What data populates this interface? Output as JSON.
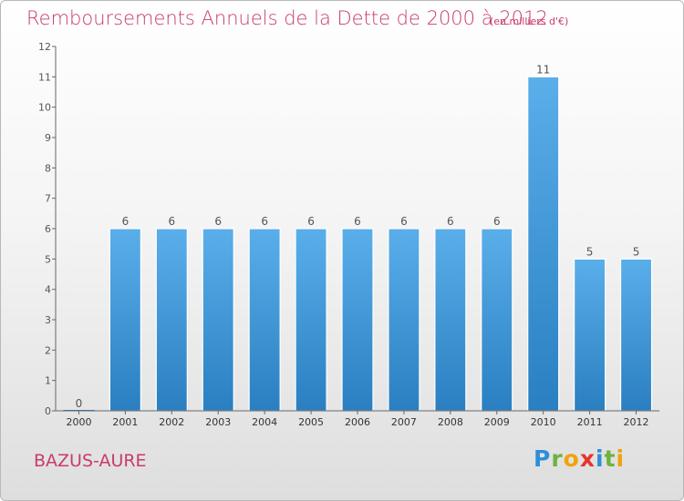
{
  "header": {
    "title": "Remboursements Annuels de la Dette de 2000 à 2012",
    "unit": "(en milliers d'€)"
  },
  "footer": {
    "place": "BAZUS-AURE",
    "logo": [
      "P",
      "r",
      "o",
      "x",
      "i",
      "t",
      "i"
    ],
    "logo_colors": [
      "#2d8fd6",
      "#6cb33f",
      "#f2a20c",
      "#e8342e",
      "#2d8fd6",
      "#6cb33f",
      "#f2a20c"
    ]
  },
  "colors": {
    "bar_top": "#5aaeea",
    "bar_bottom": "#2a7fc1",
    "axis": "#666666"
  },
  "chart_data": {
    "type": "bar",
    "title": "Remboursements Annuels de la Dette de 2000 à 2012",
    "categories": [
      "2000",
      "2001",
      "2002",
      "2003",
      "2004",
      "2005",
      "2006",
      "2007",
      "2008",
      "2009",
      "2010",
      "2011",
      "2012"
    ],
    "values": [
      0,
      6,
      6,
      6,
      6,
      6,
      6,
      6,
      6,
      6,
      11,
      5,
      5
    ],
    "ylim": [
      0,
      12
    ],
    "yticks": [
      0,
      1,
      2,
      3,
      4,
      5,
      6,
      7,
      8,
      9,
      10,
      11,
      12
    ],
    "grid": false
  }
}
